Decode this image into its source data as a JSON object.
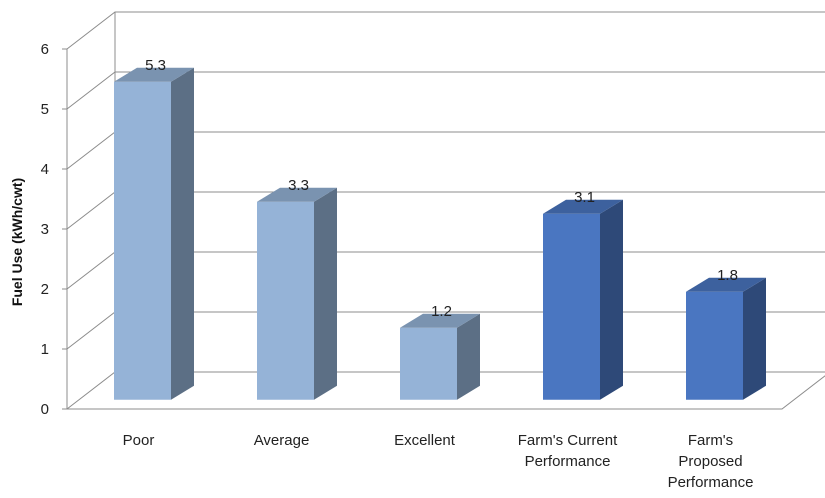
{
  "chart_data": {
    "type": "bar",
    "title": "",
    "xlabel": "",
    "ylabel": "Fuel Use (kWh/cwt)",
    "ylim": [
      0,
      6
    ],
    "yticks": [
      0,
      1,
      2,
      3,
      4,
      5,
      6
    ],
    "grid": true,
    "legend": "none",
    "style": "3d",
    "categories": [
      [
        "Poor"
      ],
      [
        "Average"
      ],
      [
        "Excellent"
      ],
      [
        "Farm's Current",
        "Performance"
      ],
      [
        "Farm's",
        "Proposed",
        "Performance"
      ]
    ],
    "values": [
      5.3,
      3.3,
      1.2,
      3.1,
      1.8
    ],
    "data_labels": [
      "5.3",
      "3.3",
      "1.2",
      "3.1",
      "1.8"
    ],
    "bar_colors": [
      "#95b3d7",
      "#95b3d7",
      "#95b3d7",
      "#4a76c1",
      "#4a76c1"
    ]
  }
}
